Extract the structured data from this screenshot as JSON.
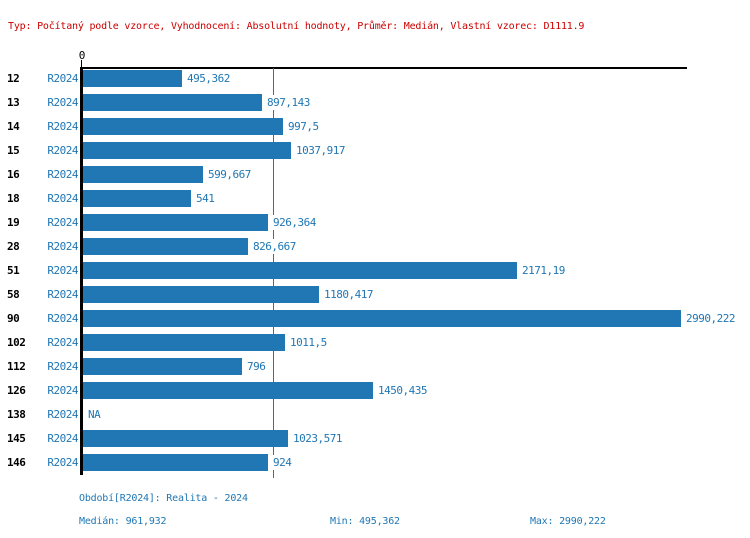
{
  "header": {
    "config_line": "Typ: Počítaný podle vzorce, Vyhodnocení: Absolutní hodnoty, Průměr: Medián, Vlastní vzorec: D1111.9"
  },
  "colors": {
    "bar_blue": "#2077b4",
    "text_blue": "#2077b4",
    "header_red": "#cc0000",
    "axis_black": "#000000"
  },
  "chart_data": {
    "type": "bar",
    "orientation": "horizontal",
    "title": "",
    "axis_zero_label": "0",
    "xlim": [
      0,
      3000
    ],
    "grid": false,
    "median_line": true,
    "median_value": 961.932,
    "categories": [
      "12",
      "13",
      "14",
      "15",
      "16",
      "18",
      "19",
      "28",
      "51",
      "58",
      "90",
      "102",
      "112",
      "126",
      "138",
      "145",
      "146"
    ],
    "series": [
      {
        "name": "R2024",
        "values": [
          495.362,
          897.143,
          997.5,
          1037.917,
          599.667,
          541,
          926.364,
          826.667,
          2171.19,
          1180.417,
          2990.222,
          1011.5,
          796,
          1450.435,
          null,
          1023.571,
          924
        ]
      }
    ],
    "value_labels": [
      "495,362",
      "897,143",
      "997,5",
      "1037,917",
      "599,667",
      "541",
      "926,364",
      "826,667",
      "2171,19",
      "1180,417",
      "2990,222",
      "1011,5",
      "796",
      "1450,435",
      "NA",
      "1023,571",
      "924"
    ]
  },
  "rows": [
    {
      "id": "12",
      "period": "R2024",
      "value": 495.362,
      "label": "495,362"
    },
    {
      "id": "13",
      "period": "R2024",
      "value": 897.143,
      "label": "897,143"
    },
    {
      "id": "14",
      "period": "R2024",
      "value": 997.5,
      "label": "997,5"
    },
    {
      "id": "15",
      "period": "R2024",
      "value": 1037.917,
      "label": "1037,917"
    },
    {
      "id": "16",
      "period": "R2024",
      "value": 599.667,
      "label": "599,667"
    },
    {
      "id": "18",
      "period": "R2024",
      "value": 541,
      "label": "541"
    },
    {
      "id": "19",
      "period": "R2024",
      "value": 926.364,
      "label": "926,364"
    },
    {
      "id": "28",
      "period": "R2024",
      "value": 826.667,
      "label": "826,667"
    },
    {
      "id": "51",
      "period": "R2024",
      "value": 2171.19,
      "label": "2171,19"
    },
    {
      "id": "58",
      "period": "R2024",
      "value": 1180.417,
      "label": "1180,417"
    },
    {
      "id": "90",
      "period": "R2024",
      "value": 2990.222,
      "label": "2990,222"
    },
    {
      "id": "102",
      "period": "R2024",
      "value": 1011.5,
      "label": "1011,5"
    },
    {
      "id": "112",
      "period": "R2024",
      "value": 796,
      "label": "796"
    },
    {
      "id": "126",
      "period": "R2024",
      "value": 1450.435,
      "label": "1450,435"
    },
    {
      "id": "138",
      "period": "R2024",
      "value": null,
      "label": "NA"
    },
    {
      "id": "145",
      "period": "R2024",
      "value": 1023.571,
      "label": "1023,571"
    },
    {
      "id": "146",
      "period": "R2024",
      "value": 924,
      "label": "924"
    }
  ],
  "footer": {
    "period_line": "Období[R2024]: Realita - 2024",
    "median_label": "Medián: 961,932",
    "min_label": "Min: 495,362",
    "max_label": "Max: 2990,222"
  }
}
